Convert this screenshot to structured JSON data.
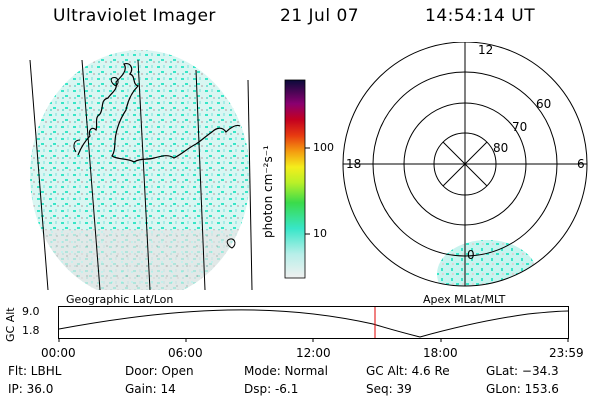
{
  "header": {
    "instrument": "Ultraviolet Imager",
    "date": "21 Jul 07",
    "time": "14:54:14 UT"
  },
  "colorbar": {
    "unit_label": "photon cm⁻²s⁻¹",
    "tick_100": "100",
    "tick_10": "10"
  },
  "polar_plot": {
    "mlt_labels": {
      "top": "12",
      "left": "18",
      "right": "6",
      "bottom": "0"
    },
    "lat_labels": [
      "60",
      "70",
      "80"
    ]
  },
  "altitude_panel": {
    "left_title": "Geographic Lat/Lon",
    "right_title": "Apex MLat/MLT",
    "y_label": "GC Alt",
    "y_ticks": [
      "9.0",
      "1.8"
    ],
    "x_ticks": [
      "00:00",
      "06:00",
      "12:00",
      "18:00",
      "23:59"
    ],
    "current_time_marker_hours": 14.9
  },
  "status": {
    "flt": "Flt: LBHL",
    "ip": "IP: 36.0",
    "door": "Door: Open",
    "gain": "Gain: 14",
    "mode": "Mode: Normal",
    "dsp": "Dsp:    -6.1",
    "gc_alt": "GC Alt: 4.6 Re",
    "seq": "Seq: 39",
    "glat": "GLat: −34.3",
    "glon": "GLon: 153.6"
  },
  "colors": {
    "cyan": "#38e6c8",
    "light_cyan": "#bff3ee",
    "grey": "#c8c8c8",
    "marker": "#e00000"
  }
}
